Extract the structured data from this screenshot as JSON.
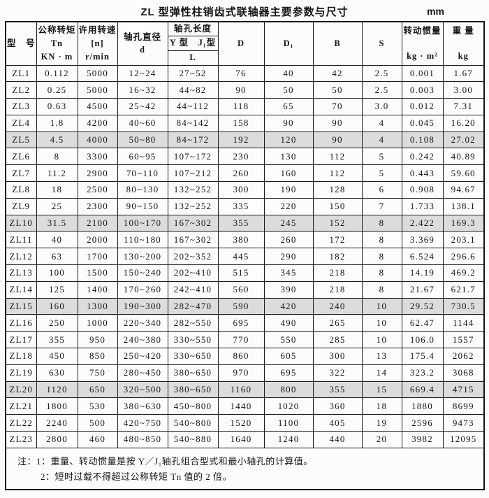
{
  "page": {
    "title": "ZL 型弹性柱销齿式联轴器主要参数与尺寸",
    "unit": "mm"
  },
  "table": {
    "highlight_color": "#dcdcdc",
    "headers": {
      "model": "型　号",
      "torque_line1": "公称转矩",
      "torque_line2": "Tn",
      "torque_line3": "KN · m",
      "speed_line1": "许用转速",
      "speed_line2": "[n]",
      "speed_line3": "r/min",
      "bore_dia_line1": "轴孔直径",
      "bore_dia_line2": "d",
      "bore_len": "轴孔长度",
      "bore_len_types": "Y 型　J₁型",
      "bore_len_l": "L",
      "D": "D",
      "D1": "D₁",
      "B": "B",
      "S": "S",
      "inertia_line1": "转动惯量",
      "inertia_line2": "kg · m²",
      "weight_line1": "重 量",
      "weight_line2": "kg"
    },
    "rows": [
      {
        "model": "ZL1",
        "tn": "0.112",
        "n": "5000",
        "d": "12~24",
        "l": "27~52",
        "D": "76",
        "D1": "40",
        "B": "42",
        "S": "2.5",
        "inertia": "0.001",
        "weight": "1.67",
        "highlight": false
      },
      {
        "model": "ZL2",
        "tn": "0.25",
        "n": "5000",
        "d": "16~32",
        "l": "44~82",
        "D": "90",
        "D1": "50",
        "B": "50",
        "S": "2.5",
        "inertia": "0.003",
        "weight": "3.00",
        "highlight": false
      },
      {
        "model": "ZL3",
        "tn": "0.63",
        "n": "4500",
        "d": "25~42",
        "l": "44~112",
        "D": "118",
        "D1": "65",
        "B": "70",
        "S": "3.0",
        "inertia": "0.012",
        "weight": "7.31",
        "highlight": false
      },
      {
        "model": "ZL4",
        "tn": "1.8",
        "n": "4200",
        "d": "40~60",
        "l": "84~142",
        "D": "158",
        "D1": "90",
        "B": "90",
        "S": "4",
        "inertia": "0.045",
        "weight": "16.20",
        "highlight": false
      },
      {
        "model": "ZL5",
        "tn": "4.5",
        "n": "4000",
        "d": "50~80",
        "l": "84~172",
        "D": "192",
        "D1": "120",
        "B": "90",
        "S": "4",
        "inertia": "0.108",
        "weight": "27.02",
        "highlight": true
      },
      {
        "model": "ZL6",
        "tn": "8",
        "n": "3300",
        "d": "60~95",
        "l": "107~172",
        "D": "230",
        "D1": "130",
        "B": "112",
        "S": "5",
        "inertia": "0.242",
        "weight": "40.89",
        "highlight": false
      },
      {
        "model": "ZL7",
        "tn": "11.2",
        "n": "2900",
        "d": "70~110",
        "l": "107~212",
        "D": "260",
        "D1": "160",
        "B": "112",
        "S": "5",
        "inertia": "0.443",
        "weight": "59.60",
        "highlight": false
      },
      {
        "model": "ZL8",
        "tn": "18",
        "n": "2500",
        "d": "80~130",
        "l": "132~252",
        "D": "300",
        "D1": "190",
        "B": "128",
        "S": "6",
        "inertia": "0.908",
        "weight": "94.67",
        "highlight": false
      },
      {
        "model": "ZL9",
        "tn": "25",
        "n": "2300",
        "d": "90~150",
        "l": "132~252",
        "D": "335",
        "D1": "220",
        "B": "150",
        "S": "7",
        "inertia": "1.733",
        "weight": "138.1",
        "highlight": false
      },
      {
        "model": "ZL10",
        "tn": "31.5",
        "n": "2100",
        "d": "100~170",
        "l": "167~302",
        "D": "355",
        "D1": "245",
        "B": "152",
        "S": "8",
        "inertia": "2.422",
        "weight": "169.3",
        "highlight": true
      },
      {
        "model": "ZL11",
        "tn": "40",
        "n": "2000",
        "d": "110~180",
        "l": "167~302",
        "D": "380",
        "D1": "260",
        "B": "172",
        "S": "8",
        "inertia": "3.369",
        "weight": "203.1",
        "highlight": false
      },
      {
        "model": "ZL12",
        "tn": "63",
        "n": "1700",
        "d": "130~200",
        "l": "202~352",
        "D": "445",
        "D1": "290",
        "B": "182",
        "S": "8",
        "inertia": "6.524",
        "weight": "296.6",
        "highlight": false
      },
      {
        "model": "ZL13",
        "tn": "100",
        "n": "1500",
        "d": "150~240",
        "l": "202~410",
        "D": "515",
        "D1": "345",
        "B": "218",
        "S": "8",
        "inertia": "14.19",
        "weight": "469.2",
        "highlight": false
      },
      {
        "model": "ZL14",
        "tn": "125",
        "n": "1400",
        "d": "170~260",
        "l": "242~410",
        "D": "560",
        "D1": "390",
        "B": "218",
        "S": "8",
        "inertia": "21.67",
        "weight": "621.7",
        "highlight": false
      },
      {
        "model": "ZL15",
        "tn": "160",
        "n": "1300",
        "d": "190~300",
        "l": "282~470",
        "D": "590",
        "D1": "420",
        "B": "240",
        "S": "10",
        "inertia": "29.52",
        "weight": "730.5",
        "highlight": true
      },
      {
        "model": "ZL16",
        "tn": "250",
        "n": "1000",
        "d": "220~340",
        "l": "282~550",
        "D": "695",
        "D1": "490",
        "B": "265",
        "S": "10",
        "inertia": "62.47",
        "weight": "1144",
        "highlight": false
      },
      {
        "model": "ZL17",
        "tn": "355",
        "n": "950",
        "d": "240~380",
        "l": "330~550",
        "D": "770",
        "D1": "550",
        "B": "285",
        "S": "10",
        "inertia": "106.0",
        "weight": "1557",
        "highlight": false
      },
      {
        "model": "ZL18",
        "tn": "450",
        "n": "850",
        "d": "250~420",
        "l": "330~650",
        "D": "860",
        "D1": "605",
        "B": "300",
        "S": "13",
        "inertia": "175.4",
        "weight": "2062",
        "highlight": false
      },
      {
        "model": "ZL19",
        "tn": "630",
        "n": "750",
        "d": "280~450",
        "l": "380~650",
        "D": "970",
        "D1": "695",
        "B": "322",
        "S": "14",
        "inertia": "323.2",
        "weight": "3068",
        "highlight": false
      },
      {
        "model": "ZL20",
        "tn": "1120",
        "n": "650",
        "d": "320~500",
        "l": "380~650",
        "D": "1160",
        "D1": "800",
        "B": "355",
        "S": "15",
        "inertia": "669.4",
        "weight": "4715",
        "highlight": true
      },
      {
        "model": "ZL21",
        "tn": "1800",
        "n": "530",
        "d": "380~630",
        "l": "450~800",
        "D": "1440",
        "D1": "1020",
        "B": "360",
        "S": "18",
        "inertia": "1880",
        "weight": "8699",
        "highlight": false
      },
      {
        "model": "ZL22",
        "tn": "2240",
        "n": "500",
        "d": "420~750",
        "l": "540~800",
        "D": "1520",
        "D1": "1100",
        "B": "405",
        "S": "19",
        "inertia": "2596",
        "weight": "9473",
        "highlight": false
      },
      {
        "model": "ZL23",
        "tn": "2800",
        "n": "460",
        "d": "480~850",
        "l": "540~880",
        "D": "1640",
        "D1": "1240",
        "B": "440",
        "S": "20",
        "inertia": "3982",
        "weight": "12095",
        "highlight": false
      }
    ]
  },
  "notes": {
    "line1": "注：1：重量、转动惯量是按 Y／J₁轴孔组合型式和最小轴孔的计算值。",
    "line2": "2：短时过载不得超过公称转矩 Tn 值的 2 倍。"
  }
}
